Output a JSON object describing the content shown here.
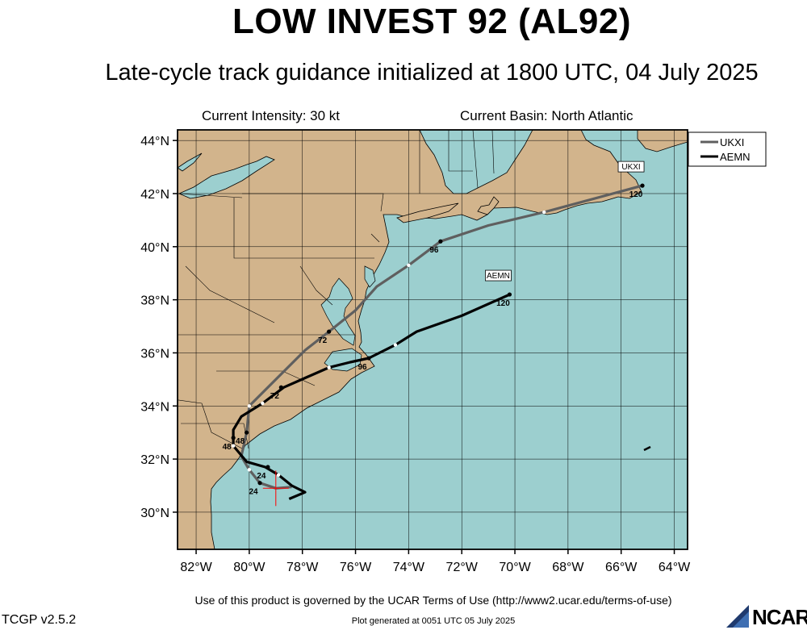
{
  "title": "LOW INVEST 92 (AL92)",
  "subtitle": "Late-cycle track guidance initialized at 1800 UTC, 04 July 2025",
  "current_intensity": "Current Intensity: 30 kt",
  "current_basin": "Current Basin: North Atlantic",
  "footer_terms": "Use of this product is governed by the UCAR Terms of Use (http://www2.ucar.edu/terms-of-use)",
  "footer_generated": "Plot generated at 0051 UTC   05 July 2025",
  "version": "TCGP v2.5.2",
  "logo_text": "NCAR",
  "colors": {
    "ocean": "#9ccfcf",
    "land": "#d2b48c",
    "ukxi": "#5f5f5f",
    "aemn": "#000000",
    "storm": "#ff0000"
  },
  "map": {
    "lat_range": [
      28.6,
      44.4
    ],
    "lon_range": [
      -82.7,
      -63.5
    ],
    "lat_ticks": [
      "30°N",
      "32°N",
      "34°N",
      "36°N",
      "38°N",
      "40°N",
      "42°N",
      "44°N"
    ],
    "lon_ticks": [
      "82°W",
      "80°W",
      "78°W",
      "76°W",
      "74°W",
      "72°W",
      "70°W",
      "68°W",
      "66°W",
      "64°W"
    ],
    "gridlines": true
  },
  "legend": {
    "position": "top-right",
    "entries": [
      {
        "name": "UKXI",
        "color": "#5f5f5f"
      },
      {
        "name": "AEMN",
        "color": "#000000"
      }
    ]
  },
  "storm_position": {
    "lat": 30.9,
    "lon": -79.0
  },
  "chart_data": {
    "type": "line",
    "xlabel": "",
    "ylabel": "",
    "xlim": [
      -82.7,
      -63.5
    ],
    "ylim": [
      28.6,
      44.4
    ],
    "series": [
      {
        "name": "UKXI",
        "color": "#5f5f5f",
        "points": [
          [
            -78.4,
            30.95
          ],
          [
            -79.0,
            30.9
          ],
          [
            -79.6,
            31.1
          ],
          [
            -80.0,
            31.6
          ],
          [
            -80.3,
            32.1
          ],
          [
            -80.1,
            33.0
          ],
          [
            -80.0,
            34.0
          ],
          [
            -79.0,
            35.0
          ],
          [
            -77.9,
            36.1
          ],
          [
            -77.0,
            36.8
          ],
          [
            -76.0,
            37.6
          ],
          [
            -75.2,
            38.5
          ],
          [
            -74.0,
            39.3
          ],
          [
            -72.8,
            40.2
          ],
          [
            -71.0,
            40.8
          ],
          [
            -68.9,
            41.3
          ],
          [
            -65.2,
            42.3
          ]
        ],
        "hour_labels": [
          {
            "hour": "24",
            "lon": -79.6,
            "lat": 31.1
          },
          {
            "hour": "48",
            "lon": -80.1,
            "lat": 33.0
          },
          {
            "hour": "72",
            "lon": -77.0,
            "lat": 36.8
          },
          {
            "hour": "96",
            "lon": -72.8,
            "lat": 40.2
          },
          {
            "hour": "120",
            "lon": -65.2,
            "lat": 42.3
          }
        ],
        "end_label": "UKXI"
      },
      {
        "name": "AEMN",
        "color": "#000000",
        "points": [
          [
            -78.5,
            30.5
          ],
          [
            -77.9,
            30.75
          ],
          [
            -78.4,
            31.0
          ],
          [
            -78.9,
            31.4
          ],
          [
            -79.4,
            31.7
          ],
          [
            -80.1,
            31.9
          ],
          [
            -80.6,
            32.5
          ],
          [
            -80.6,
            33.1
          ],
          [
            -80.3,
            33.6
          ],
          [
            -79.5,
            34.1
          ],
          [
            -78.7,
            34.7
          ],
          [
            -77.8,
            35.1
          ],
          [
            -77.0,
            35.45
          ],
          [
            -76.2,
            35.65
          ],
          [
            -75.5,
            35.8
          ],
          [
            -74.5,
            36.3
          ],
          [
            -73.7,
            36.8
          ],
          [
            -72.0,
            37.4
          ],
          [
            -70.2,
            38.2
          ]
        ],
        "hour_labels": [
          {
            "hour": "24",
            "lon": -79.3,
            "lat": 31.7
          },
          {
            "hour": "48",
            "lon": -80.6,
            "lat": 32.8
          },
          {
            "hour": "72",
            "lon": -78.8,
            "lat": 34.7
          },
          {
            "hour": "96",
            "lon": -75.5,
            "lat": 35.8
          },
          {
            "hour": "120",
            "lon": -70.2,
            "lat": 38.2
          }
        ],
        "end_label": "AEMN"
      }
    ]
  }
}
